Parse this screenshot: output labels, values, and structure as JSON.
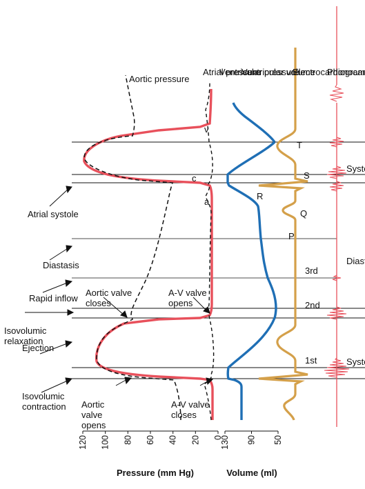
{
  "signals": {
    "aortic_pressure": "Aortic pressure",
    "atrial_pressure": "Atrial pressure",
    "ventricular_pressure": "Ventricular pressure",
    "ventricular_volume": "Ventricular volume",
    "electrocardiogram": "Electrocardiogram",
    "phonocardiogram": "Phonocardiogram"
  },
  "phases": {
    "isovolumic_contraction": [
      "Isovolumic",
      "contraction"
    ],
    "ejection": "Ejection",
    "isovolumic_relaxation": [
      "Isovolumic",
      "relaxation"
    ],
    "rapid_inflow": "Rapid inflow",
    "diastasis": "Diastasis",
    "atrial_systole": "Atrial systole"
  },
  "events": {
    "aortic_valve_opens": [
      "Aortic",
      "valve",
      "opens"
    ],
    "av_valve_closes": [
      "A-V valve",
      "closes"
    ],
    "aortic_valve_closes": [
      "Aortic valve",
      "closes"
    ],
    "av_valve_opens": [
      "A-V valve",
      "opens"
    ]
  },
  "waves": {
    "a": "a",
    "c": "c",
    "v": "v",
    "P": "P",
    "Q": "Q",
    "R": "R",
    "S": "S",
    "T": "T"
  },
  "heart_sounds": {
    "first": "1st",
    "second": "2nd",
    "third": "3rd"
  },
  "cycle_labels": {
    "systole_1": "Systole",
    "diastole": "Diastole",
    "systole_2": "Systole"
  },
  "pressure_axis": {
    "title": "Pressure (mm Hg)",
    "ticks": [
      120,
      100,
      80,
      60,
      40,
      20,
      0
    ],
    "range": [
      0,
      120
    ]
  },
  "volume_axis": {
    "title": "Volume (ml)",
    "ticks": [
      130,
      90,
      50
    ],
    "range": [
      50,
      130
    ]
  },
  "colors": {
    "ventricular_pressure": "#e8505b",
    "ventricular_volume": "#1f6fb5",
    "electrocardiogram": "#d4a04a",
    "phonocardiogram": "#e8505b",
    "lines": "#111111"
  }
}
